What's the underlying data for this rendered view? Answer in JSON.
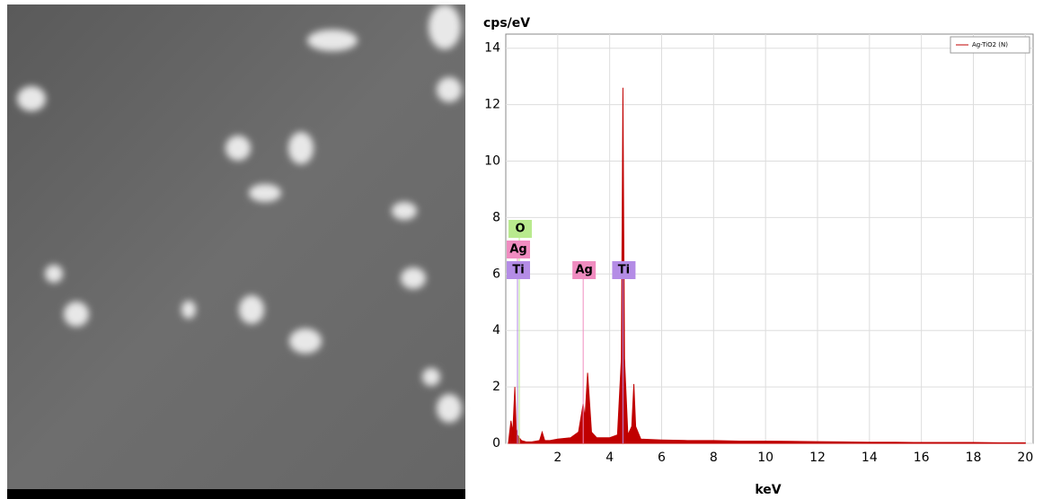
{
  "chart_data": {
    "type": "area",
    "y_label": "cps/eV",
    "x_label": "keV",
    "xlim": [
      0,
      20.3
    ],
    "ylim": [
      0,
      14.5
    ],
    "xticks": [
      2,
      4,
      6,
      8,
      10,
      12,
      14,
      16,
      18,
      20
    ],
    "yticks": [
      0,
      2,
      4,
      6,
      8,
      10,
      12,
      14
    ],
    "grid": true,
    "legend": "top-right",
    "series": [
      {
        "name": "Ag-TiO2 (N)",
        "color": "#c00000",
        "x": [
          0.1,
          0.2,
          0.27,
          0.35,
          0.4,
          0.45,
          0.52,
          0.6,
          0.8,
          1.0,
          1.3,
          1.4,
          1.5,
          1.7,
          2.0,
          2.5,
          2.8,
          2.98,
          3.05,
          3.15,
          3.3,
          3.5,
          4.0,
          4.3,
          4.45,
          4.51,
          4.57,
          4.7,
          4.85,
          4.93,
          5.0,
          5.2,
          6,
          7,
          8,
          9,
          10,
          11,
          12,
          13,
          14,
          15,
          16,
          17,
          18,
          19,
          20
        ],
        "values": [
          0,
          0.8,
          0.4,
          2.0,
          0.5,
          0.3,
          0.2,
          0.1,
          0.05,
          0.05,
          0.1,
          0.4,
          0.1,
          0.1,
          0.15,
          0.2,
          0.4,
          1.4,
          0.9,
          2.5,
          0.4,
          0.2,
          0.2,
          0.3,
          3,
          12.6,
          3,
          0.3,
          0.6,
          2.1,
          0.6,
          0.15,
          0.12,
          0.1,
          0.1,
          0.08,
          0.08,
          0.07,
          0.06,
          0.05,
          0.04,
          0.04,
          0.03,
          0.03,
          0.03,
          0.02,
          0.02
        ]
      }
    ],
    "annotations": [
      {
        "text": "O",
        "x": 0.52,
        "color": "#b9ea8e"
      },
      {
        "text": "Ag",
        "x": 0.45,
        "color": "#f08cc0"
      },
      {
        "text": "Ti",
        "x": 0.45,
        "color": "#b48ce6"
      },
      {
        "text": "Ag",
        "x": 2.98,
        "color": "#f08cc0"
      },
      {
        "text": "Ti",
        "x": 4.51,
        "color": "#b48ce6"
      }
    ]
  }
}
